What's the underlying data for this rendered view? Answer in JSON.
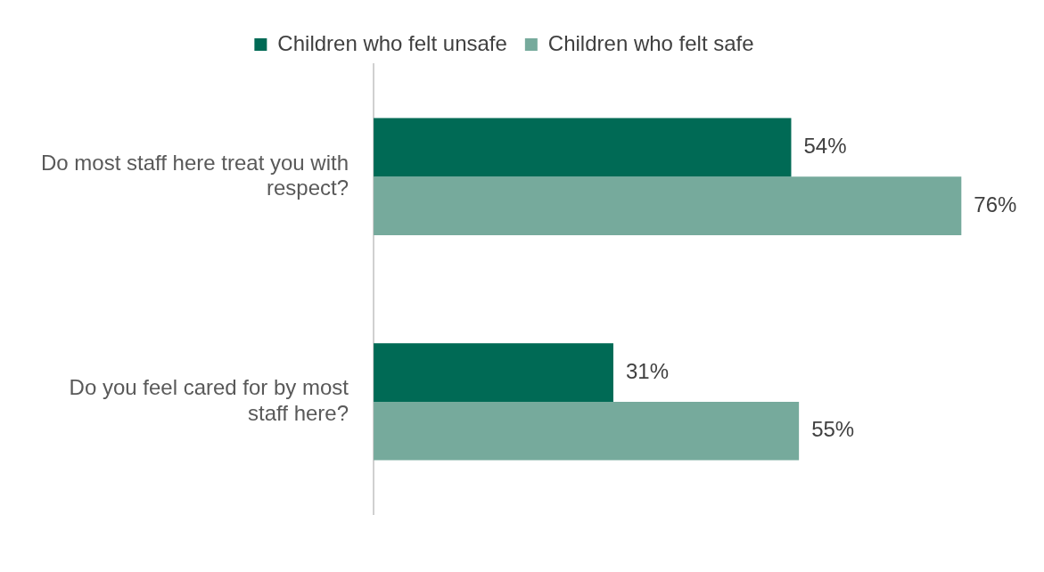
{
  "chart_data": {
    "type": "bar",
    "orientation": "horizontal",
    "categories": [
      "Do most staff here treat you with respect?",
      "Do you feel cared for by most staff here?"
    ],
    "series": [
      {
        "name": "Children who felt unsafe",
        "color": "#006a55",
        "values": [
          54,
          31
        ],
        "value_labels": [
          "54%",
          "31%"
        ]
      },
      {
        "name": "Children who felt safe",
        "color": "#76aa9c",
        "values": [
          76,
          55
        ],
        "value_labels": [
          "76%",
          "55%"
        ]
      }
    ],
    "legend": "top",
    "grid": false,
    "tick_labels": "y"
  }
}
